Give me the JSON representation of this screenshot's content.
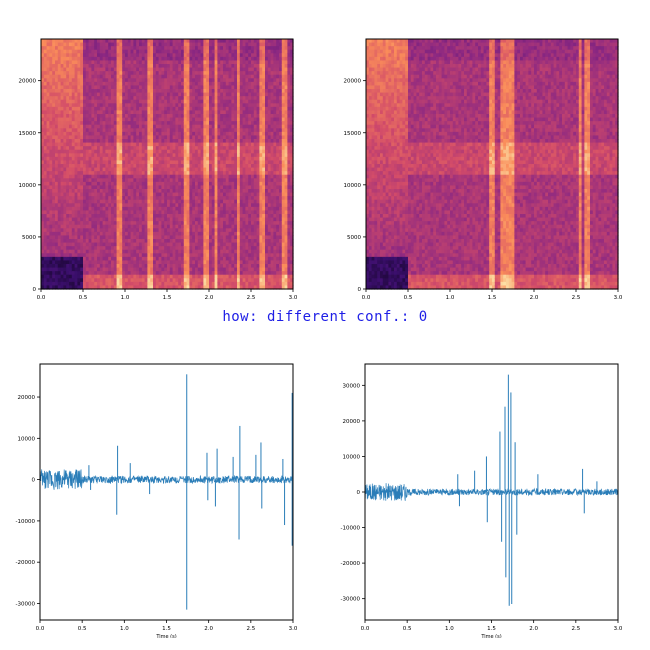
{
  "caption": "how: different conf.: 0",
  "colors": {
    "wave": "#2a7db8",
    "caption": "#1e1ee6"
  },
  "chart_data": [
    {
      "id": "spec-left",
      "type": "heatmap",
      "colormap": "magma",
      "xlim": [
        0,
        3.0
      ],
      "ylim": [
        0,
        24000
      ],
      "xticks": [
        "0.0",
        "0.5",
        "1.0",
        "1.5",
        "2.0",
        "2.5",
        "3.0"
      ],
      "yticks": [
        "0",
        "5000",
        "10000",
        "15000",
        "20000"
      ],
      "quiet_until": 0.5,
      "bright_columns": [
        0.92,
        1.3,
        1.74,
        1.98,
        2.08,
        2.35,
        2.62,
        2.9
      ],
      "bright_band_hz": 12500
    },
    {
      "id": "spec-right",
      "type": "heatmap",
      "colormap": "magma",
      "xlim": [
        0,
        3.0
      ],
      "ylim": [
        0,
        24000
      ],
      "xticks": [
        "0.0",
        "0.5",
        "1.0",
        "1.5",
        "2.0",
        "2.5",
        "3.0"
      ],
      "yticks": [
        "0",
        "5000",
        "10000",
        "15000",
        "20000"
      ],
      "quiet_until": 0.5,
      "bright_columns": [
        1.5,
        1.63,
        1.7,
        1.75,
        2.55,
        2.62
      ],
      "bright_band_hz": 12500
    },
    {
      "id": "wave-left",
      "type": "line",
      "xlabel": "Time (s)",
      "xlim": [
        0,
        3.0
      ],
      "ylim": [
        -34000,
        28000
      ],
      "xticks": [
        "0.0",
        "0.5",
        "1.0",
        "1.5",
        "2.0",
        "2.5",
        "3.0"
      ],
      "yticks": [
        "-30000",
        "-20000",
        "-10000",
        "0",
        "10000",
        "20000"
      ],
      "ytick_values": [
        -30000,
        -20000,
        -10000,
        0,
        10000,
        20000
      ],
      "baseline": 0,
      "noise_before_0_5": 2500,
      "spikes": [
        {
          "t": 0.58,
          "v": 3500
        },
        {
          "t": 0.6,
          "v": -2500
        },
        {
          "t": 0.92,
          "v": 8200
        },
        {
          "t": 0.91,
          "v": -8500
        },
        {
          "t": 1.07,
          "v": 4000
        },
        {
          "t": 1.3,
          "v": -3500
        },
        {
          "t": 1.74,
          "v": 25500
        },
        {
          "t": 1.74,
          "v": -31500
        },
        {
          "t": 1.98,
          "v": 6500
        },
        {
          "t": 1.99,
          "v": -5000
        },
        {
          "t": 2.1,
          "v": 7500
        },
        {
          "t": 2.08,
          "v": -6500
        },
        {
          "t": 2.29,
          "v": 5500
        },
        {
          "t": 2.37,
          "v": 13000
        },
        {
          "t": 2.36,
          "v": -14500
        },
        {
          "t": 2.56,
          "v": 6000
        },
        {
          "t": 2.62,
          "v": 9000
        },
        {
          "t": 2.63,
          "v": -7000
        },
        {
          "t": 2.88,
          "v": 5000
        },
        {
          "t": 2.9,
          "v": -11000
        },
        {
          "t": 2.99,
          "v": 21000
        },
        {
          "t": 2.99,
          "v": -16000
        }
      ]
    },
    {
      "id": "wave-right",
      "type": "line",
      "xlabel": "Time (s)",
      "xlim": [
        0,
        3.0
      ],
      "ylim": [
        -36000,
        36000
      ],
      "xticks": [
        "0.0",
        "0.5",
        "1.0",
        "1.5",
        "2.0",
        "2.5",
        "3.0"
      ],
      "yticks": [
        "-30000",
        "-20000",
        "-10000",
        "0",
        "10000",
        "20000",
        "30000"
      ],
      "ytick_values": [
        -30000,
        -20000,
        -10000,
        0,
        10000,
        20000,
        30000
      ],
      "baseline": 0,
      "noise_before_0_5": 2500,
      "spikes": [
        {
          "t": 1.1,
          "v": 5000
        },
        {
          "t": 1.12,
          "v": -4000
        },
        {
          "t": 1.3,
          "v": 6000
        },
        {
          "t": 1.44,
          "v": 10000
        },
        {
          "t": 1.45,
          "v": -8500
        },
        {
          "t": 1.6,
          "v": 17000
        },
        {
          "t": 1.62,
          "v": -14000
        },
        {
          "t": 1.66,
          "v": 24000
        },
        {
          "t": 1.67,
          "v": -24000
        },
        {
          "t": 1.7,
          "v": 33000
        },
        {
          "t": 1.71,
          "v": -32000
        },
        {
          "t": 1.73,
          "v": 28000
        },
        {
          "t": 1.74,
          "v": -31500
        },
        {
          "t": 1.78,
          "v": 14000
        },
        {
          "t": 1.8,
          "v": -12000
        },
        {
          "t": 2.05,
          "v": 5000
        },
        {
          "t": 2.58,
          "v": 6500
        },
        {
          "t": 2.6,
          "v": -6000
        },
        {
          "t": 2.75,
          "v": 3000
        }
      ]
    }
  ]
}
